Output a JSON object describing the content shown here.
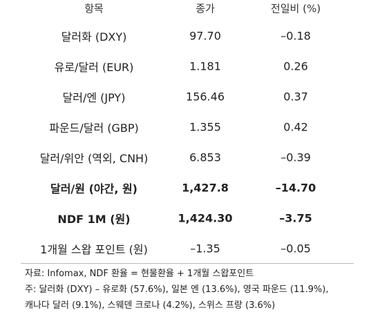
{
  "table": {
    "header": [
      "항목",
      "종가",
      "전일비 (%)"
    ],
    "rows": [
      [
        "달러화 (DXY)",
        "97.70",
        "–0.18"
      ],
      [
        "유로/달러 (EUR)",
        "1.181",
        "0.26"
      ],
      [
        "달러/엔 (JPY)",
        "156.46",
        "0.37"
      ],
      [
        "파운드/달러 (GBP)",
        "1.355",
        "0.42"
      ],
      [
        "달러/위안 (역외, CNH)",
        "6.853",
        "–0.39"
      ],
      [
        "달러/원 (야간, 원)",
        "1,427.8",
        "–14.70"
      ],
      [
        "NDF 1M (원)",
        "1,424.30",
        "–3.75"
      ],
      [
        "1개월 스왑 포인트 (원)",
        "–1.35",
        "–0.05"
      ]
    ]
  },
  "notes": [
    "자료: Infomax, NDF 환율 = 현물환율 + 1개월 스왑포인트",
    "주: 달러화 (DXY) – 유로화 (57.6%), 일본 엔 (13.6%), 영국 파운드 (11.9%),",
    "캐나다 달러 (9.1%), 스웨덴 크로나 (4.2%), 스위스 프랑 (3.6%)"
  ]
}
